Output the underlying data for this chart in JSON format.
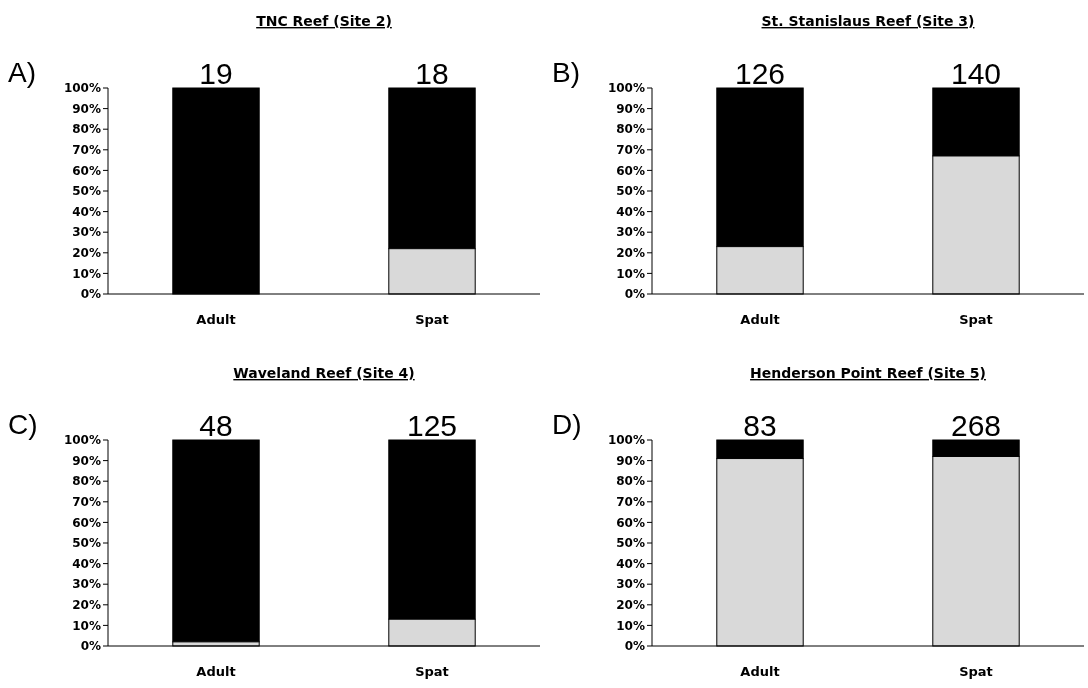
{
  "chart_data": [
    {
      "type": "bar",
      "title": "TNC Reef (Site 2)",
      "categories": [
        "Adult",
        "Spat"
      ],
      "stacked": true,
      "ylim": [
        0,
        100
      ],
      "yticks": [
        {
          "value": 0,
          "label": "0%"
        },
        {
          "value": 10,
          "label": "10%"
        },
        {
          "value": 20,
          "label": "20%"
        },
        {
          "value": 30,
          "label": "30%"
        },
        {
          "value": 40,
          "label": "40%"
        },
        {
          "value": 50,
          "label": "50%"
        },
        {
          "value": 60,
          "label": "60%"
        },
        {
          "value": 70,
          "label": "70%"
        },
        {
          "value": 80,
          "label": "80%"
        },
        {
          "value": 90,
          "label": "90%"
        },
        {
          "value": 100,
          "label": "100%"
        }
      ],
      "series": [
        {
          "color": "#d9d9d9",
          "values": [
            0,
            22
          ]
        },
        {
          "color": "#000000",
          "values": [
            100,
            78
          ]
        }
      ],
      "annotations": [
        "A)",
        {
          "text": "19",
          "x": "Adult",
          "y": 100
        },
        {
          "text": "18",
          "x": "Spat",
          "y": 100
        }
      ]
    },
    {
      "type": "bar",
      "title": "St. Stanislaus Reef (Site 3)",
      "categories": [
        "Adult",
        "Spat"
      ],
      "stacked": true,
      "ylim": [
        0,
        100
      ],
      "yticks": [
        {
          "value": 0,
          "label": "0%"
        },
        {
          "value": 10,
          "label": "10%"
        },
        {
          "value": 20,
          "label": "20%"
        },
        {
          "value": 30,
          "label": "30%"
        },
        {
          "value": 40,
          "label": "40%"
        },
        {
          "value": 50,
          "label": "50%"
        },
        {
          "value": 60,
          "label": "60%"
        },
        {
          "value": 70,
          "label": "70%"
        },
        {
          "value": 80,
          "label": "80%"
        },
        {
          "value": 90,
          "label": "90%"
        },
        {
          "value": 100,
          "label": "100%"
        }
      ],
      "series": [
        {
          "color": "#d9d9d9",
          "values": [
            23,
            67
          ]
        },
        {
          "color": "#000000",
          "values": [
            77,
            33
          ]
        }
      ],
      "annotations": [
        "B)",
        {
          "text": "126",
          "x": "Adult",
          "y": 100
        },
        {
          "text": "140",
          "x": "Spat",
          "y": 100
        }
      ]
    },
    {
      "type": "bar",
      "title": "Waveland Reef (Site 4)",
      "categories": [
        "Adult",
        "Spat"
      ],
      "stacked": true,
      "ylim": [
        0,
        100
      ],
      "yticks": [
        {
          "value": 0,
          "label": "0%"
        },
        {
          "value": 10,
          "label": "10%"
        },
        {
          "value": 20,
          "label": "20%"
        },
        {
          "value": 30,
          "label": "30%"
        },
        {
          "value": 40,
          "label": "40%"
        },
        {
          "value": 50,
          "label": "50%"
        },
        {
          "value": 60,
          "label": "60%"
        },
        {
          "value": 70,
          "label": "70%"
        },
        {
          "value": 80,
          "label": "80%"
        },
        {
          "value": 90,
          "label": "90%"
        },
        {
          "value": 100,
          "label": "100%"
        }
      ],
      "series": [
        {
          "color": "#d9d9d9",
          "values": [
            2,
            13
          ]
        },
        {
          "color": "#000000",
          "values": [
            98,
            87
          ]
        }
      ],
      "annotations": [
        "C)",
        {
          "text": "48",
          "x": "Adult",
          "y": 100
        },
        {
          "text": "125",
          "x": "Spat",
          "y": 100
        }
      ]
    },
    {
      "type": "bar",
      "title": "Henderson Point Reef (Site 5)",
      "categories": [
        "Adult",
        "Spat"
      ],
      "stacked": true,
      "ylim": [
        0,
        100
      ],
      "yticks": [
        {
          "value": 0,
          "label": "0%"
        },
        {
          "value": 10,
          "label": "10%"
        },
        {
          "value": 20,
          "label": "20%"
        },
        {
          "value": 30,
          "label": "30%"
        },
        {
          "value": 40,
          "label": "40%"
        },
        {
          "value": 50,
          "label": "50%"
        },
        {
          "value": 60,
          "label": "60%"
        },
        {
          "value": 70,
          "label": "70%"
        },
        {
          "value": 80,
          "label": "80%"
        },
        {
          "value": 90,
          "label": "90%"
        },
        {
          "value": 100,
          "label": "100%"
        }
      ],
      "series": [
        {
          "color": "#d9d9d9",
          "values": [
            91,
            92
          ]
        },
        {
          "color": "#000000",
          "values": [
            9,
            8
          ]
        }
      ],
      "annotations": [
        "D)",
        {
          "text": "83",
          "x": "Adult",
          "y": 100
        },
        {
          "text": "268",
          "x": "Spat",
          "y": 100
        }
      ]
    }
  ]
}
